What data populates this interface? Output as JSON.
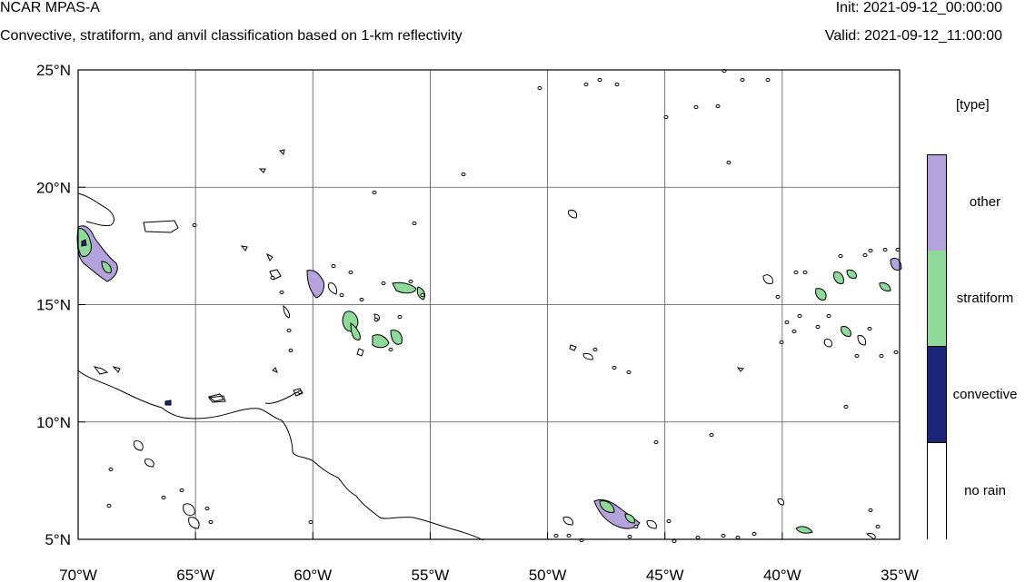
{
  "header": {
    "title": "NCAR MPAS-A",
    "subtitle": "Convective, stratiform, and anvil classification based on 1-km reflectivity",
    "init": "Init: 2021-09-12_00:00:00",
    "valid": "Valid: 2021-09-12_11:00:00"
  },
  "map": {
    "extent": {
      "lon": [
        -70,
        -35
      ],
      "lat": [
        5,
        25
      ]
    },
    "lat_ticks": [
      {
        "value": 25,
        "label": "25°N"
      },
      {
        "value": 20,
        "label": "20°N"
      },
      {
        "value": 15,
        "label": "15°N"
      },
      {
        "value": 10,
        "label": "10°N"
      },
      {
        "value": 5,
        "label": "5°N"
      }
    ],
    "lon_ticks": [
      {
        "value": -70,
        "label": "70°W"
      },
      {
        "value": -65,
        "label": "65°W"
      },
      {
        "value": -60,
        "label": "60°W"
      },
      {
        "value": -55,
        "label": "55°W"
      },
      {
        "value": -50,
        "label": "50°W"
      },
      {
        "value": -45,
        "label": "45°W"
      },
      {
        "value": -40,
        "label": "40°W"
      },
      {
        "value": -35,
        "label": "35°W"
      }
    ],
    "gridlines": true
  },
  "legend": {
    "title": "[type]",
    "classes": [
      {
        "label": "other",
        "color": "#b3a2dc"
      },
      {
        "label": "stratiform",
        "color": "#8fd99a"
      },
      {
        "label": "convective",
        "color": "#1b2577"
      },
      {
        "label": "no rain",
        "color": "#ffffff"
      }
    ]
  }
}
